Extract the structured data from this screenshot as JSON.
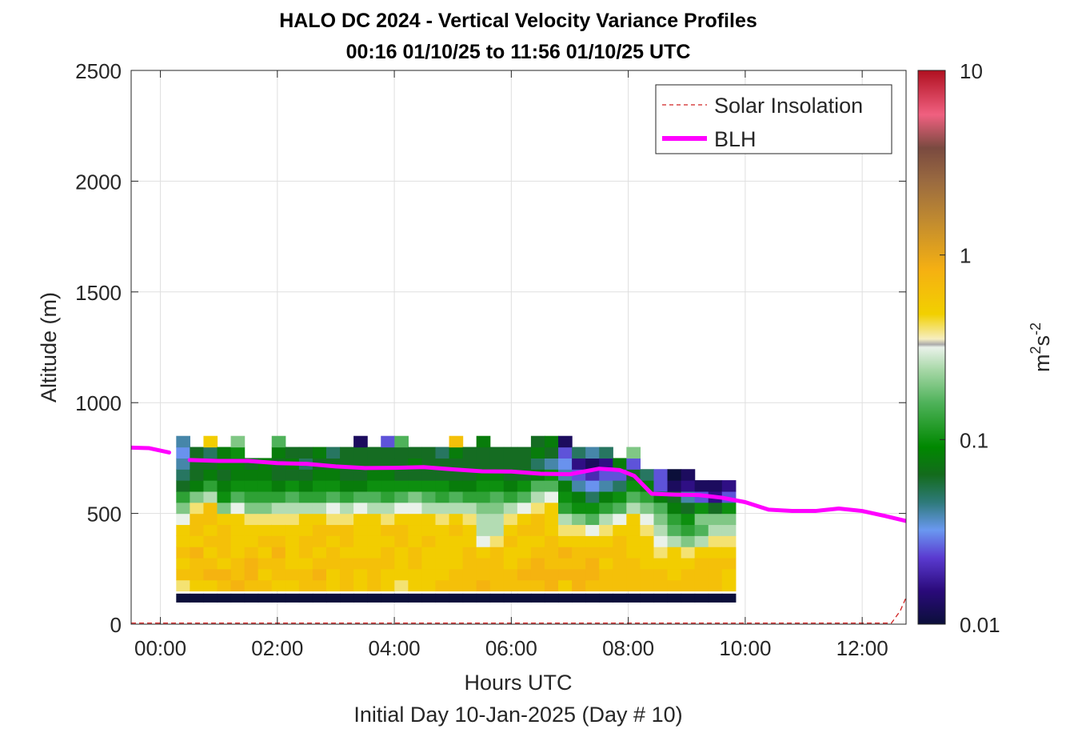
{
  "chart_data": {
    "type": "heatmap",
    "title_line1": "HALO DC 2024 - Vertical Velocity Variance Profiles",
    "title_line2": "00:16 01/10/25 to 11:56 01/10/25  UTC",
    "xlabel": "Hours UTC",
    "xlabel2": "Initial Day 10-Jan-2025 (Day # 10)",
    "ylabel": "Altitude (m)",
    "xlim": [
      -0.5,
      12.75
    ],
    "ylim": [
      0,
      2500
    ],
    "x_ticks": [
      0,
      2,
      4,
      6,
      8,
      10,
      12
    ],
    "x_tick_labels": [
      "00:00",
      "02:00",
      "04:00",
      "06:00",
      "08:00",
      "10:00",
      "12:00"
    ],
    "y_ticks": [
      0,
      500,
      1000,
      1500,
      2000,
      2500
    ],
    "y_tick_labels": [
      "0",
      "500",
      "1000",
      "1500",
      "2000",
      "2500"
    ],
    "grid": true,
    "colorbar": {
      "label": "m²s⁻²",
      "label_base": "m",
      "label_exp1": "2",
      "label_mid": "s",
      "label_exp2": "-2",
      "scale": "log",
      "range": [
        0.01,
        10
      ],
      "ticks": [
        0.01,
        0.1,
        1,
        10
      ],
      "tick_labels": [
        "0.01",
        "0.1",
        "1",
        "10"
      ],
      "stops": [
        {
          "v": 0.0,
          "c": "#0b0f3a"
        },
        {
          "v": 0.06,
          "c": "#2a0a7a"
        },
        {
          "v": 0.12,
          "c": "#5a3ad0"
        },
        {
          "v": 0.17,
          "c": "#6a98f0"
        },
        {
          "v": 0.22,
          "c": "#2e7a7a"
        },
        {
          "v": 0.27,
          "c": "#136b1c"
        },
        {
          "v": 0.32,
          "c": "#008800"
        },
        {
          "v": 0.4,
          "c": "#4fb25a"
        },
        {
          "v": 0.46,
          "c": "#a8d8a8"
        },
        {
          "v": 0.5,
          "c": "#eaf2ea"
        },
        {
          "v": 0.505,
          "c": "#aaaaaa"
        },
        {
          "v": 0.515,
          "c": "#f6eec0"
        },
        {
          "v": 0.56,
          "c": "#f2d000"
        },
        {
          "v": 0.64,
          "c": "#f5b012"
        },
        {
          "v": 0.73,
          "c": "#c08a30"
        },
        {
          "v": 0.8,
          "c": "#9a6a40"
        },
        {
          "v": 0.86,
          "c": "#7a4a40"
        },
        {
          "v": 0.92,
          "c": "#f06080"
        },
        {
          "v": 1.0,
          "c": "#b01020"
        }
      ]
    },
    "heatmap": {
      "x_start": 0.27,
      "x_step": 0.2333,
      "z_start": 100,
      "z_step": 50,
      "value_note_units": "log10(m2 s-2)",
      "columns": [
        [
          -2,
          -0.4,
          -0.2,
          -0.3,
          -0.2,
          -0.3,
          -0.3,
          -0.5,
          -0.7,
          -0.9,
          -1.2,
          -1.3,
          -1.4,
          -1.5,
          -1.4
        ],
        [
          -2,
          -0.3,
          -0.2,
          -0.2,
          -0.1,
          -0.3,
          -0.2,
          -0.2,
          -0.4,
          -0.7,
          -1.1,
          -1.2,
          -1.2,
          -1.2
        ],
        [
          -2,
          -0.3,
          -0.1,
          -0.2,
          -0.3,
          -0.2,
          -0.3,
          -0.2,
          -0.2,
          -0.6,
          -0.9,
          -1.1,
          -1.2,
          -1.3,
          -0.3
        ],
        [
          -2,
          -0.2,
          -0.1,
          -0.3,
          -0.2,
          -0.2,
          -0.2,
          -0.3,
          -0.7,
          -1.0,
          -1.1,
          -1.2,
          -1.1,
          -1.1
        ],
        [
          -2,
          -0.1,
          -0.2,
          -0.2,
          -0.3,
          -0.3,
          -0.3,
          -0.3,
          -0.5,
          -0.8,
          -1.0,
          -1.1,
          -1.1,
          -1.0,
          -0.7
        ],
        [
          -2,
          -0.2,
          -0.1,
          -0.1,
          -0.2,
          -0.3,
          -0.3,
          -0.4,
          -0.7,
          -0.9,
          -1.0,
          -1.1,
          -1.2
        ],
        [
          -2,
          -0.2,
          -0.3,
          -0.2,
          -0.3,
          -0.2,
          -0.3,
          -0.4,
          -0.7,
          -0.9,
          -1.0,
          -1.1,
          -1.1
        ],
        [
          -2,
          -0.3,
          -0.2,
          -0.2,
          -0.1,
          -0.2,
          -0.3,
          -0.4,
          -0.6,
          -0.9,
          -1.1,
          -1.2,
          -1.2,
          -1.1,
          -0.8
        ],
        [
          -2,
          -0.3,
          -0.2,
          -0.3,
          -0.3,
          -0.3,
          -0.3,
          -0.4,
          -0.6,
          -0.8,
          -1.0,
          -1.2,
          -1.1,
          -1.2
        ],
        [
          -2,
          -0.2,
          -0.2,
          -0.3,
          -0.2,
          -0.2,
          -0.3,
          -0.3,
          -0.6,
          -0.9,
          -1.1,
          -1.2,
          -1.3,
          -1.2
        ],
        [
          -2,
          -0.2,
          -0.1,
          -0.2,
          -0.3,
          -0.2,
          -0.2,
          -0.3,
          -0.6,
          -0.9,
          -1.0,
          -1.1,
          -1.2,
          -1.1
        ],
        [
          -2,
          -0.3,
          -0.3,
          -0.2,
          -0.2,
          -0.3,
          -0.2,
          -0.4,
          -0.5,
          -0.8,
          -1.0,
          -1.1,
          -1.2,
          -1.3
        ],
        [
          -2,
          -0.2,
          -0.2,
          -0.2,
          -0.3,
          -0.2,
          -0.2,
          -0.4,
          -0.6,
          -0.9,
          -1.1,
          -1.2,
          -1.2,
          -1.2
        ],
        [
          -2,
          -0.3,
          -0.3,
          -0.2,
          -0.3,
          -0.3,
          -0.3,
          -0.3,
          -0.5,
          -0.8,
          -1.1,
          -1.2,
          -1.2,
          -1.2,
          -1.9
        ],
        [
          -2,
          -0.2,
          -0.2,
          -0.2,
          -0.3,
          -0.3,
          -0.3,
          -0.3,
          -0.6,
          -0.8,
          -1.0,
          -1.1,
          -1.2,
          -1.2
        ],
        [
          -2,
          -0.3,
          -0.3,
          -0.2,
          -0.2,
          -0.3,
          -0.2,
          -0.4,
          -0.6,
          -0.9,
          -1.0,
          -1.1,
          -1.2,
          -1.2,
          -1.6
        ],
        [
          -2,
          -0.4,
          -0.3,
          -0.3,
          -0.3,
          -0.2,
          -0.2,
          -0.3,
          -0.5,
          -0.8,
          -1.0,
          -1.2,
          -1.2,
          -1.2,
          -0.8
        ],
        [
          -2,
          -0.3,
          -0.3,
          -0.2,
          -0.2,
          -0.3,
          -0.3,
          -0.3,
          -0.5,
          -0.7,
          -1.0,
          -1.2,
          -1.1,
          -1.2
        ],
        [
          -2,
          -0.3,
          -0.3,
          -0.3,
          -0.3,
          -0.2,
          -0.3,
          -0.3,
          -0.6,
          -0.8,
          -1.0,
          -1.2,
          -1.2,
          -1.2
        ],
        [
          -2,
          -0.2,
          -0.3,
          -0.3,
          -0.3,
          -0.3,
          -0.3,
          -0.4,
          -0.6,
          -0.9,
          -1.0,
          -1.2,
          -1.2,
          -1.3
        ],
        [
          -2,
          -0.2,
          -0.2,
          -0.3,
          -0.3,
          -0.3,
          -0.2,
          -0.3,
          -0.6,
          -0.8,
          -1.1,
          -1.2,
          -1.2,
          -1.1,
          -0.2
        ],
        [
          -2,
          -0.2,
          -0.2,
          -0.2,
          -0.2,
          -0.3,
          -0.3,
          -0.4,
          -0.6,
          -0.9,
          -1.1,
          -1.2,
          -1.2,
          -1.2
        ],
        [
          -2,
          -0.1,
          -0.2,
          -0.2,
          -0.3,
          -0.5,
          -0.6,
          -0.6,
          -0.7,
          -0.9,
          -1.0,
          -1.1,
          -1.2,
          -1.2,
          -1.1
        ],
        [
          -2,
          -0.2,
          -0.2,
          -0.2,
          -0.2,
          -0.4,
          -0.6,
          -0.6,
          -0.7,
          -0.8,
          -1.0,
          -1.1,
          -1.2,
          -1.2
        ],
        [
          -2,
          -0.2,
          -0.2,
          -0.3,
          -0.3,
          -0.2,
          -0.3,
          -0.4,
          -0.6,
          -0.9,
          -1.1,
          -1.2,
          -1.2,
          -1.2
        ],
        [
          -2,
          -0.2,
          -0.1,
          -0.2,
          -0.3,
          -0.3,
          -0.2,
          -0.3,
          -0.5,
          -0.8,
          -1.0,
          -1.2,
          -1.2,
          -1.2
        ],
        [
          -2,
          -0.2,
          -0.1,
          -0.1,
          -0.2,
          -0.3,
          -0.2,
          -0.2,
          -0.4,
          -0.6,
          -0.8,
          -1.1,
          -1.3,
          -1.1,
          -1.2
        ],
        [
          -2,
          -0.1,
          -0.1,
          -0.2,
          -0.2,
          -0.2,
          -0.3,
          -0.3,
          -0.3,
          -0.5,
          -0.8,
          -1.0,
          -1.4,
          -1.2,
          -1.1
        ],
        [
          -2,
          -0.3,
          -0.1,
          -0.2,
          -0.1,
          -0.3,
          -0.4,
          -0.6,
          -0.9,
          -1.0,
          -1.1,
          -1.4,
          -1.5,
          -1.6,
          -1.9
        ],
        [
          -2,
          -0.1,
          -0.1,
          -0.2,
          -0.2,
          -0.3,
          -0.4,
          -0.7,
          -1.0,
          -1.1,
          -1.4,
          -1.6,
          -1.8,
          -1.3
        ],
        [
          -2,
          -0.2,
          -0.1,
          -0.1,
          -0.2,
          -0.3,
          -0.5,
          -0.8,
          -1.0,
          -1.3,
          -1.5,
          -1.7,
          -1.9,
          -1.4
        ],
        [
          -2,
          -0.2,
          -0.2,
          -0.3,
          -0.2,
          -0.3,
          -0.4,
          -0.6,
          -0.9,
          -1.1,
          -1.4,
          -1.6,
          -1.8,
          -1.3
        ],
        [
          -2,
          -0.2,
          -0.2,
          -0.2,
          -0.2,
          -0.2,
          -0.3,
          -0.5,
          -0.8,
          -1.0,
          -1.3,
          -1.6,
          -1.1
        ],
        [
          -2,
          -0.2,
          -0.2,
          -0.2,
          -0.3,
          -0.3,
          -0.3,
          -0.3,
          -0.6,
          -0.8,
          -1.0,
          -1.2,
          -1.6,
          -0.7
        ],
        [
          -2,
          -0.2,
          -0.2,
          -0.3,
          -0.3,
          -0.3,
          -0.4,
          -0.5,
          -0.7,
          -0.9,
          -1.1,
          -1.3
        ],
        [
          -2,
          -0.2,
          -0.2,
          -0.3,
          -0.4,
          -0.5,
          -0.6,
          -0.7,
          -0.8,
          -1.1,
          -1.6,
          -1.6
        ],
        [
          -2,
          -0.2,
          -0.3,
          -0.3,
          -0.3,
          -0.6,
          -0.8,
          -0.9,
          -1.1,
          -1.2,
          -1.9,
          -2.0
        ],
        [
          -2,
          -0.2,
          -0.2,
          -0.3,
          -0.4,
          -0.7,
          -0.9,
          -1.0,
          -1.2,
          -1.4,
          -1.8,
          -1.9
        ],
        [
          -2,
          -0.2,
          -0.2,
          -0.2,
          -0.3,
          -0.6,
          -0.8,
          -0.7,
          -1.0,
          -1.6,
          -1.9
        ],
        [
          -2,
          -0.2,
          -0.2,
          -0.2,
          -0.3,
          -0.4,
          -0.6,
          -0.7,
          -1.2,
          -1.8,
          -1.9
        ],
        [
          -2,
          -0.3,
          -0.3,
          -0.2,
          -0.3,
          -0.4,
          -0.6,
          -0.7,
          -1.0,
          -1.6,
          -1.8
        ]
      ]
    },
    "series": [
      {
        "name": "Solar Insolation",
        "style": "dashed",
        "color": "#d02020",
        "x": [
          -0.5,
          12.5,
          12.65,
          12.75
        ],
        "y": [
          5,
          5,
          60,
          120
        ]
      },
      {
        "name": "BLH",
        "style": "solid",
        "color": "#ff00ff",
        "segments": [
          {
            "x": [
              -0.5,
              -0.2,
              0.15
            ],
            "y": [
              797,
              795,
              775
            ]
          },
          {
            "x": [
              0.5,
              1.0,
              1.5,
              2.0,
              2.5,
              3.0,
              3.5,
              4.0,
              4.5,
              5.0,
              5.5,
              6.0,
              6.5,
              7.0,
              7.5,
              7.85,
              8.1,
              8.4,
              8.8,
              9.2,
              9.6,
              10.0,
              10.4,
              10.8,
              11.2,
              11.6,
              12.0,
              12.4,
              12.75
            ],
            "y": [
              741,
              737,
              737,
              727,
              724,
              712,
              705,
              706,
              709,
              699,
              690,
              689,
              679,
              677,
              702,
              696,
              670,
              589,
              585,
              583,
              571,
              551,
              517,
              511,
              511,
              522,
              511,
              488,
              466
            ]
          }
        ]
      }
    ],
    "legend": {
      "placement": "top-right",
      "entries": [
        "Solar Insolation",
        "BLH"
      ]
    }
  }
}
